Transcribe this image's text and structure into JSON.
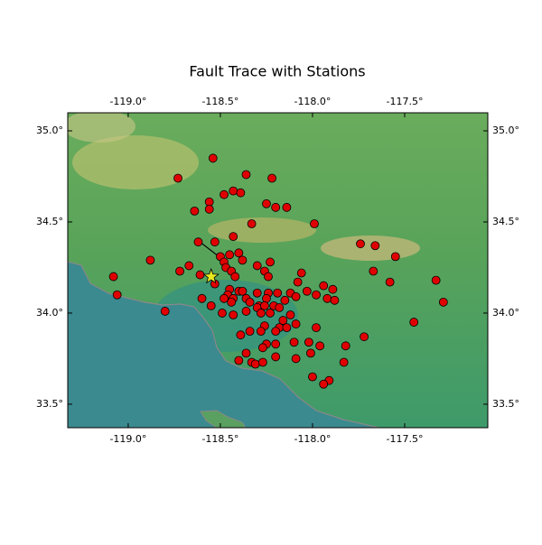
{
  "chart_data": {
    "type": "scatter",
    "title": "Fault Trace with Stations",
    "xlim": [
      -119.328,
      -117.049
    ],
    "ylim": [
      33.371,
      35.099
    ],
    "xticks": [
      {
        "value": -119.0,
        "label": "-119.0°"
      },
      {
        "value": -118.5,
        "label": "-118.5°"
      },
      {
        "value": -118.0,
        "label": "-118.0°"
      },
      {
        "value": -117.5,
        "label": "-117.5°"
      }
    ],
    "yticks": [
      {
        "value": 33.5,
        "label": "33.5°"
      },
      {
        "value": 34.0,
        "label": "34.0°"
      },
      {
        "value": 34.5,
        "label": "34.5°"
      },
      {
        "value": 35.0,
        "label": "35.0°"
      }
    ],
    "color": "#e00000",
    "x": [
      -118.54,
      -118.73,
      -118.36,
      -118.22,
      -118.43,
      -118.39,
      -118.48,
      -118.56,
      -118.25,
      -118.2,
      -118.14,
      -118.64,
      -118.56,
      -118.33,
      -117.99,
      -118.43,
      -118.62,
      -118.53,
      -117.74,
      -117.66,
      -118.4,
      -118.45,
      -118.5,
      -118.38,
      -117.55,
      -118.88,
      -118.67,
      -118.23,
      -118.48,
      -118.3,
      -118.47,
      -118.72,
      -118.44,
      -118.26,
      -117.67,
      -118.06,
      -119.08,
      -118.61,
      -118.42,
      -118.24,
      -117.58,
      -117.33,
      -118.53,
      -118.08,
      -117.94,
      -118.45,
      -118.4,
      -117.89,
      -119.06,
      -118.38,
      -118.3,
      -118.24,
      -118.46,
      -118.19,
      -118.12,
      -118.09,
      -118.03,
      -117.98,
      -117.92,
      -117.88,
      -118.6,
      -118.48,
      -118.43,
      -118.36,
      -118.25,
      -118.15,
      -118.34,
      -118.29,
      -118.21,
      -117.29,
      -118.44,
      -118.55,
      -118.3,
      -118.26,
      -118.18,
      -118.8,
      -118.49,
      -118.43,
      -118.36,
      -118.28,
      -118.23,
      -118.12,
      -118.16,
      -118.18,
      -118.14,
      -118.09,
      -117.45,
      -118.26,
      -118.28,
      -118.2,
      -118.34,
      -118.39,
      -117.98,
      -117.72,
      -118.25,
      -118.1,
      -118.02,
      -118.2,
      -118.27,
      -117.96,
      -117.82,
      -118.36,
      -118.2,
      -118.01,
      -118.09,
      -118.4,
      -118.33,
      -118.31,
      -118.27,
      -117.83,
      -118.0,
      -117.91,
      -117.94
    ],
    "y": [
      34.85,
      34.74,
      34.76,
      34.74,
      34.67,
      34.66,
      34.65,
      34.61,
      34.6,
      34.58,
      34.58,
      34.56,
      34.57,
      34.49,
      34.49,
      34.42,
      34.39,
      34.39,
      34.38,
      34.37,
      34.33,
      34.32,
      34.31,
      34.29,
      34.31,
      34.29,
      34.26,
      34.28,
      34.28,
      34.26,
      34.25,
      34.23,
      34.23,
      34.23,
      34.23,
      34.22,
      34.2,
      34.21,
      34.2,
      34.2,
      34.17,
      34.18,
      34.16,
      34.17,
      34.15,
      34.13,
      34.12,
      34.13,
      34.1,
      34.12,
      34.11,
      34.11,
      34.1,
      34.11,
      34.11,
      34.09,
      34.12,
      34.1,
      34.08,
      34.07,
      34.08,
      34.08,
      34.08,
      34.08,
      34.08,
      34.07,
      34.06,
      34.04,
      34.04,
      34.06,
      34.06,
      34.04,
      34.03,
      34.04,
      34.03,
      34.01,
      34.0,
      33.99,
      34.01,
      34.0,
      34.0,
      33.99,
      33.96,
      33.92,
      33.92,
      33.94,
      33.95,
      33.93,
      33.9,
      33.9,
      33.9,
      33.88,
      33.92,
      33.87,
      33.83,
      33.84,
      33.84,
      33.83,
      33.81,
      33.82,
      33.82,
      33.78,
      33.76,
      33.78,
      33.75,
      33.74,
      33.73,
      33.72,
      33.73,
      33.73,
      33.65,
      33.63,
      33.61
    ],
    "fault_trace": {
      "x": [
        -118.61,
        -118.47
      ],
      "y": [
        34.39,
        34.28
      ],
      "color": "#000000"
    },
    "epicenter": {
      "x": -118.55,
      "y": 34.2,
      "color": "#e8e820"
    }
  }
}
